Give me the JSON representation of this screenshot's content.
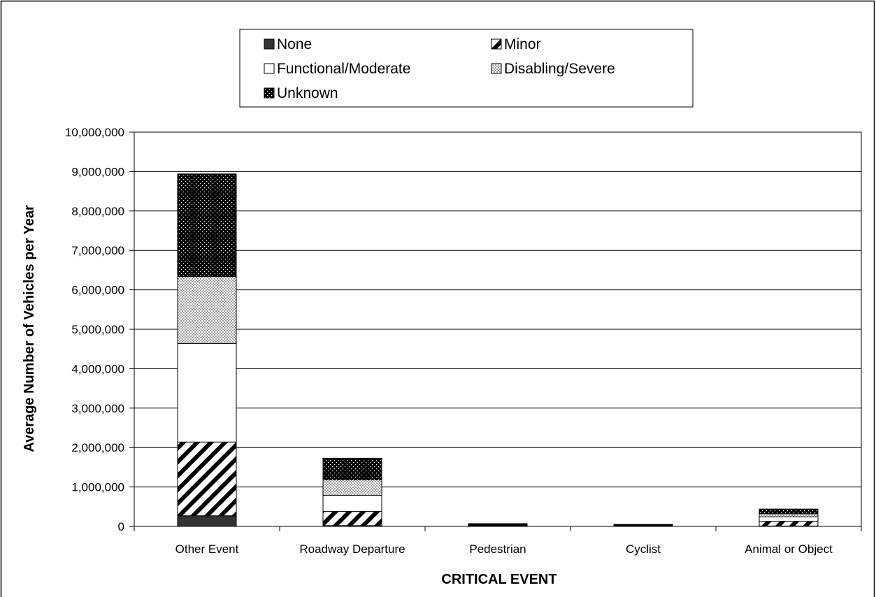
{
  "chart_data": {
    "type": "bar",
    "stacked": true,
    "title": "",
    "xlabel": "CRITICAL EVENT",
    "ylabel": "Average Number of Vehicles per Year",
    "ylim": [
      0,
      10000000
    ],
    "yticks": [
      "0",
      "1,000,000",
      "2,000,000",
      "3,000,000",
      "4,000,000",
      "5,000,000",
      "6,000,000",
      "7,000,000",
      "8,000,000",
      "9,000,000",
      "10,000,000"
    ],
    "categories": [
      "Other Event",
      "Roadway Departure",
      "Pedestrian",
      "Cyclist",
      "Animal or Object"
    ],
    "series": [
      {
        "name": "None",
        "pattern": "solid-dark",
        "values": [
          270000,
          20000,
          5000,
          5000,
          10000
        ]
      },
      {
        "name": "Minor",
        "pattern": "diagonal",
        "values": [
          1870000,
          360000,
          15000,
          15000,
          120000
        ]
      },
      {
        "name": "Functional/Moderate",
        "pattern": "white",
        "values": [
          2500000,
          410000,
          15000,
          10000,
          110000
        ]
      },
      {
        "name": "Disabling/Severe",
        "pattern": "checker",
        "values": [
          1700000,
          390000,
          15000,
          10000,
          80000
        ]
      },
      {
        "name": "Unknown",
        "pattern": "dotted",
        "values": [
          2600000,
          550000,
          20000,
          10000,
          120000
        ]
      }
    ],
    "grid": true,
    "legend_position": "top"
  }
}
